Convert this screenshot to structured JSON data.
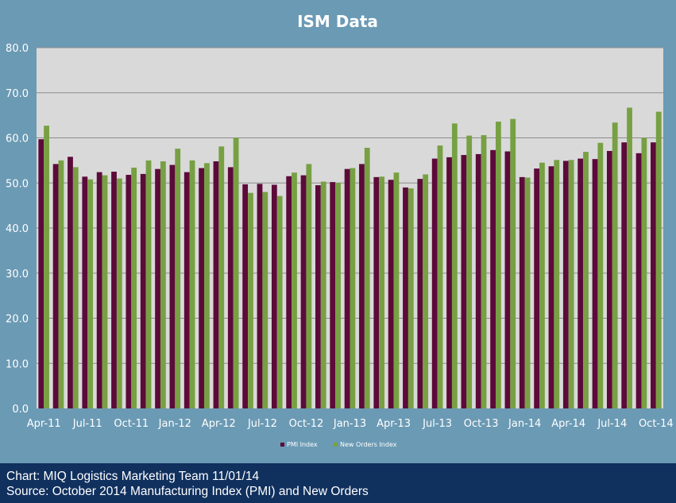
{
  "chart_data": {
    "type": "bar",
    "title": "ISM Data",
    "xlabel": "",
    "ylabel": "",
    "ylim": [
      0,
      80
    ],
    "y_ticks": [
      "0.0",
      "10.0",
      "20.0",
      "30.0",
      "40.0",
      "50.0",
      "60.0",
      "70.0",
      "80.0"
    ],
    "grid": true,
    "legend_position": "bottom-center",
    "categories": [
      "Apr-11",
      "May-11",
      "Jun-11",
      "Jul-11",
      "Aug-11",
      "Sep-11",
      "Oct-11",
      "Nov-11",
      "Dec-11",
      "Jan-12",
      "Feb-12",
      "Mar-12",
      "Apr-12",
      "May-12",
      "Jun-12",
      "Jul-12",
      "Aug-12",
      "Sep-12",
      "Oct-12",
      "Nov-12",
      "Dec-12",
      "Jan-13",
      "Feb-13",
      "Mar-13",
      "Apr-13",
      "May-13",
      "Jun-13",
      "Jul-13",
      "Aug-13",
      "Sep-13",
      "Oct-13",
      "Nov-13",
      "Dec-13",
      "Jan-14",
      "Feb-14",
      "Mar-14",
      "Apr-14",
      "May-14",
      "Jun-14",
      "Jul-14",
      "Aug-14",
      "Sep-14",
      "Oct-14"
    ],
    "x_tick_labels": [
      {
        "index": 0,
        "label": "Apr-11"
      },
      {
        "index": 3,
        "label": "Jul-11"
      },
      {
        "index": 6,
        "label": "Oct-11"
      },
      {
        "index": 9,
        "label": "Jan-12"
      },
      {
        "index": 12,
        "label": "Apr-12"
      },
      {
        "index": 15,
        "label": "Jul-12"
      },
      {
        "index": 18,
        "label": "Oct-12"
      },
      {
        "index": 21,
        "label": "Jan-13"
      },
      {
        "index": 24,
        "label": "Apr-13"
      },
      {
        "index": 27,
        "label": "Jul-13"
      },
      {
        "index": 30,
        "label": "Oct-13"
      },
      {
        "index": 33,
        "label": "Jan-14"
      },
      {
        "index": 36,
        "label": "Apr-14"
      },
      {
        "index": 39,
        "label": "Jul-14"
      },
      {
        "index": 42,
        "label": "Oct-14"
      }
    ],
    "series": [
      {
        "name": "PMI Index",
        "color": "#5c0a3a",
        "values": [
          59.7,
          54.2,
          55.8,
          51.4,
          52.4,
          52.5,
          51.8,
          52.0,
          53.1,
          54.0,
          52.4,
          53.3,
          54.8,
          53.5,
          49.7,
          49.8,
          49.6,
          51.5,
          51.7,
          49.5,
          50.2,
          53.1,
          54.2,
          51.3,
          50.7,
          49.0,
          50.9,
          55.4,
          55.7,
          56.2,
          56.4,
          57.3,
          57.0,
          51.3,
          53.2,
          53.7,
          54.9,
          55.4,
          55.3,
          57.1,
          59.0,
          56.6,
          59.0
        ]
      },
      {
        "name": "New Orders Index",
        "color": "#77a043",
        "values": [
          62.7,
          55.0,
          53.5,
          50.8,
          51.7,
          51.0,
          53.4,
          55.0,
          54.8,
          57.6,
          55.0,
          54.4,
          58.1,
          60.0,
          47.8,
          48.0,
          47.1,
          52.3,
          54.2,
          50.3,
          50.0,
          53.3,
          57.8,
          51.4,
          52.3,
          48.8,
          51.9,
          58.3,
          63.2,
          60.5,
          60.6,
          63.6,
          64.2,
          51.2,
          54.5,
          55.1,
          55.1,
          56.9,
          58.9,
          63.4,
          66.7,
          60.0,
          65.8
        ]
      }
    ]
  },
  "footer": {
    "line1": "Chart: MIQ Logistics Marketing Team 11/01/14",
    "line2": "Source: October 2014 Manufacturing Index (PMI) and New Orders"
  }
}
